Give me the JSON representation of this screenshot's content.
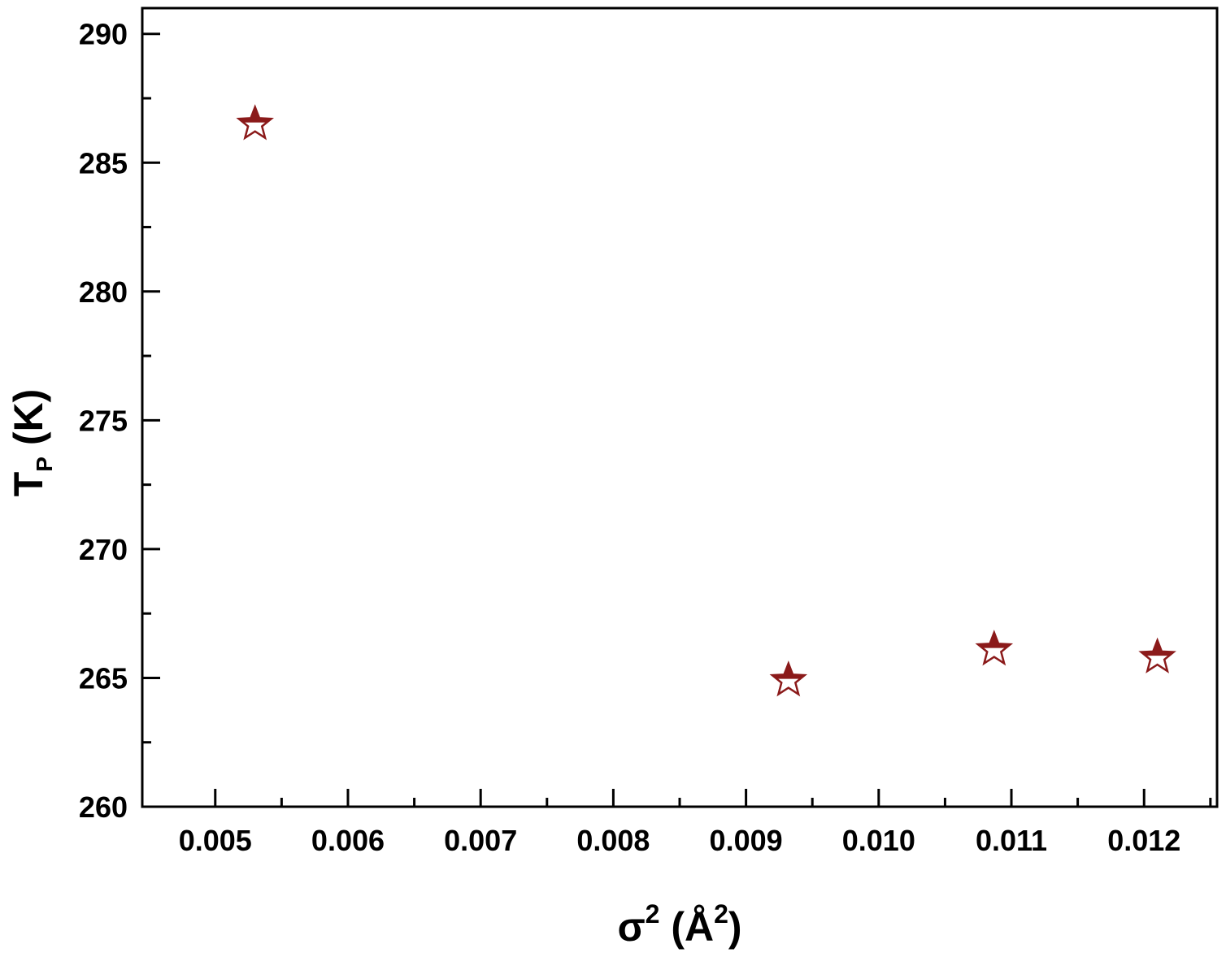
{
  "chart_data": {
    "type": "scatter",
    "title": "",
    "xlabel": {
      "base": "σ",
      "sup": "2",
      "unit_open": " (Å",
      "unit_sup": "2",
      "unit_close": ")"
    },
    "ylabel": {
      "base": "T",
      "sub": "P",
      "unit": " (K)"
    },
    "xlim": [
      0.00445,
      0.01255
    ],
    "ylim": [
      260,
      291
    ],
    "x_ticks": [
      0.005,
      0.006,
      0.007,
      0.008,
      0.009,
      0.01,
      0.011,
      0.012
    ],
    "x_tick_labels": [
      "0.005",
      "0.006",
      "0.007",
      "0.008",
      "0.009",
      "0.010",
      "0.011",
      "0.012"
    ],
    "x_minor_ticks": [
      0.0055,
      0.0065,
      0.0075,
      0.0085,
      0.0095,
      0.0105,
      0.0115,
      0.0125
    ],
    "y_ticks": [
      260,
      265,
      270,
      275,
      280,
      285,
      290
    ],
    "y_tick_labels": [
      "260",
      "265",
      "270",
      "275",
      "280",
      "285",
      "290"
    ],
    "y_minor_ticks": [
      262.5,
      267.5,
      272.5,
      277.5,
      282.5,
      287.5
    ],
    "grid": false,
    "legend": "none",
    "marker": "half-filled-star",
    "marker_color": "#8b1a1a",
    "series": [
      {
        "x": [
          0.0053,
          0.00932,
          0.01087,
          0.0121
        ],
        "y": [
          286.5,
          264.9,
          266.1,
          265.8
        ]
      }
    ]
  }
}
